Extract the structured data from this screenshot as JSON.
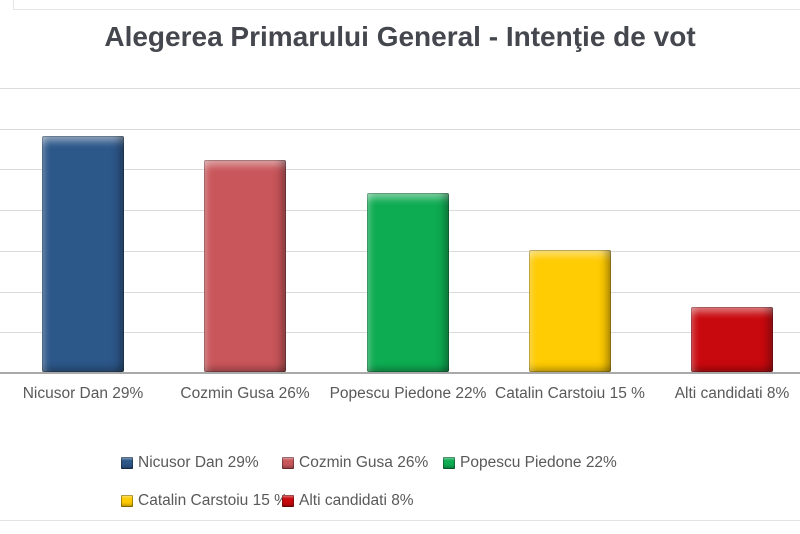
{
  "header": {
    "title": "Alegerea Primarului General - Intenţie de vot"
  },
  "chart_data": {
    "type": "bar",
    "title": "Alegerea Primarului General - Intenţie de vot",
    "categories": [
      "Nicusor Dan 29%",
      "Cozmin Gusa 26%",
      "Popescu Piedone 22%",
      "Catalin Carstoiu 15 %",
      "Alti candidati 8%"
    ],
    "values": [
      29,
      26,
      22,
      15,
      8
    ],
    "bar_colors": [
      "#2c5789",
      "#c8565a",
      "#0eac52",
      "#ffcb02",
      "#c8090e"
    ],
    "xlabel": "",
    "ylabel": "",
    "ylim": [
      0,
      35
    ],
    "gridline_step": 5,
    "grid": true,
    "y_tick_labels_visible": false,
    "legend_position": "bottom",
    "legend_entries": [
      "Nicusor Dan 29%",
      "Cozmin Gusa 26%",
      "Popescu Piedone 22%",
      "Catalin Carstoiu 15 %",
      "Alti candidati 8%"
    ]
  },
  "style": {
    "gridline_color": "#dbdbdb",
    "axis_line_color": "#a9a9a9",
    "title_color": "#45474e",
    "label_color": "#595959"
  }
}
